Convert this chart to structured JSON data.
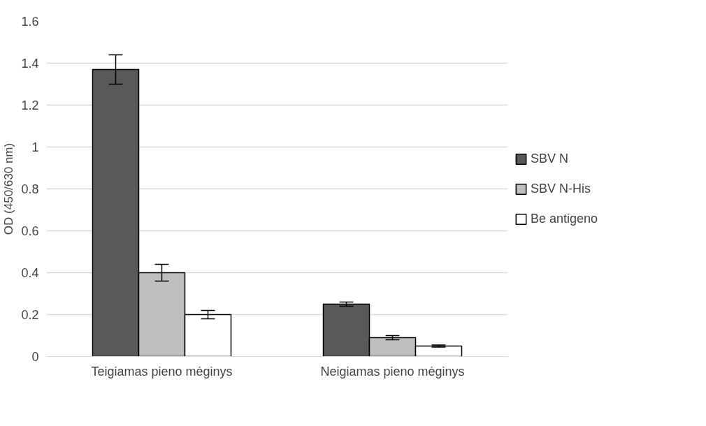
{
  "chart_data": {
    "type": "bar",
    "ylabel": "OD (450/630 nm)",
    "categories": [
      "Teigiamas pieno mėginys",
      "Neigiamas pieno mėginys"
    ],
    "series": [
      {
        "name": "SBV N",
        "color": "#595959",
        "values": [
          1.37,
          0.25
        ],
        "errors": [
          0.07,
          0.01
        ]
      },
      {
        "name": "SBV N-His",
        "color": "#bfbfbf",
        "values": [
          0.4,
          0.09
        ],
        "errors": [
          0.04,
          0.01
        ]
      },
      {
        "name": "Be antigeno",
        "color": "#ffffff",
        "values": [
          0.2,
          0.05
        ],
        "errors": [
          0.02,
          0.005
        ]
      }
    ],
    "ylim": [
      0,
      1.6
    ],
    "yticks": [
      0,
      0.2,
      0.4,
      0.6,
      0.8,
      1,
      1.2,
      1.4,
      1.6
    ],
    "grid": "y",
    "legend": "right"
  }
}
